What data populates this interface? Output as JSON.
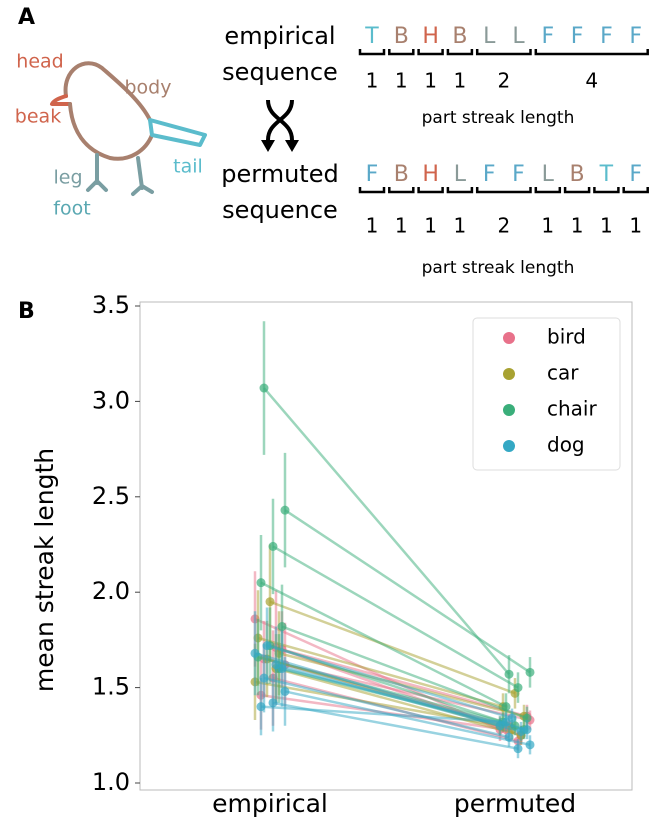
{
  "panel_a": {
    "label": "A",
    "bird_parts": [
      {
        "text": "head",
        "color": "#d0644c"
      },
      {
        "text": "body",
        "color": "#a8806e"
      },
      {
        "text": "beak",
        "color": "#d0644c"
      },
      {
        "text": "tail",
        "color": "#5bbccc"
      },
      {
        "text": "leg",
        "color": "#7a9ea2"
      },
      {
        "text": "foot",
        "color": "#5aa8b2"
      }
    ],
    "letter_colors": {
      "T": "#5bbccc",
      "B": "#a8806e",
      "H": "#d0644c",
      "L": "#8a9a98",
      "F": "#5aa8c8"
    },
    "empirical": {
      "label_lines": [
        "empirical",
        "sequence"
      ],
      "letters": [
        "T",
        "B",
        "H",
        "B",
        "L",
        "L",
        "F",
        "F",
        "F",
        "F"
      ],
      "streaks": [
        1,
        1,
        1,
        1,
        2,
        4
      ],
      "caption": "part streak length"
    },
    "permuted": {
      "label_lines": [
        "permuted",
        "sequence"
      ],
      "letters": [
        "F",
        "B",
        "H",
        "L",
        "F",
        "F",
        "L",
        "B",
        "T",
        "F"
      ],
      "streaks": [
        1,
        1,
        1,
        1,
        2,
        1,
        1,
        1,
        1
      ],
      "caption": "part streak length"
    }
  },
  "chart_data": {
    "type": "slope",
    "panel_label": "B",
    "y_label": "mean streak length",
    "categories": [
      "empirical",
      "permuted"
    ],
    "ylim": [
      1.0,
      3.5
    ],
    "yticks": [
      {
        "value": 1.0,
        "label": "1.0"
      },
      1.5,
      {
        "value": 2.0,
        "label": "2.0"
      },
      2.5,
      {
        "value": 3.0,
        "label": "3.0"
      },
      3.5
    ],
    "legend": "upper right",
    "series": [
      {
        "name": "bird",
        "color": "#e8718a",
        "lines": [
          {
            "values": [
              1.86,
              1.28
            ],
            "errors": [
              0.25,
              0.06
            ]
          },
          {
            "values": [
              1.71,
              1.25
            ],
            "errors": [
              0.3,
              0.05
            ]
          },
          {
            "values": [
              1.65,
              1.3
            ],
            "errors": [
              0.2,
              0.06
            ]
          },
          {
            "values": [
              1.62,
              1.33
            ],
            "errors": [
              0.22,
              0.05
            ]
          },
          {
            "values": [
              1.55,
              1.22
            ],
            "errors": [
              0.25,
              0.05
            ]
          },
          {
            "values": [
              1.46,
              1.28
            ],
            "errors": [
              0.18,
              0.05
            ]
          },
          {
            "values": [
              1.7,
              1.35
            ],
            "errors": [
              0.2,
              0.06
            ]
          }
        ]
      },
      {
        "name": "car",
        "color": "#a8a232",
        "lines": [
          {
            "values": [
              1.95,
              1.47
            ],
            "errors": [
              0.3,
              0.08
            ]
          },
          {
            "values": [
              1.76,
              1.4
            ],
            "errors": [
              0.25,
              0.07
            ]
          },
          {
            "values": [
              1.68,
              1.35
            ],
            "errors": [
              0.22,
              0.06
            ]
          },
          {
            "values": [
              1.65,
              1.28
            ],
            "errors": [
              0.2,
              0.05
            ]
          },
          {
            "values": [
              1.53,
              1.3
            ],
            "errors": [
              0.2,
              0.05
            ]
          },
          {
            "values": [
              1.6,
              1.25
            ],
            "errors": [
              0.18,
              0.05
            ]
          }
        ]
      },
      {
        "name": "chair",
        "color": "#3aae7a",
        "lines": [
          {
            "values": [
              3.07,
              1.57
            ],
            "errors": [
              0.35,
              0.1
            ]
          },
          {
            "values": [
              2.43,
              1.58
            ],
            "errors": [
              0.3,
              0.08
            ]
          },
          {
            "values": [
              2.24,
              1.5
            ],
            "errors": [
              0.25,
              0.08
            ]
          },
          {
            "values": [
              2.05,
              1.4
            ],
            "errors": [
              0.25,
              0.07
            ]
          },
          {
            "values": [
              1.82,
              1.34
            ],
            "errors": [
              0.22,
              0.06
            ]
          },
          {
            "values": [
              1.72,
              1.3
            ],
            "errors": [
              0.2,
              0.05
            ]
          },
          {
            "values": [
              1.66,
              1.32
            ],
            "errors": [
              0.2,
              0.05
            ]
          },
          {
            "values": [
              1.6,
              1.28
            ],
            "errors": [
              0.18,
              0.05
            ]
          }
        ]
      },
      {
        "name": "dog",
        "color": "#34a8c4",
        "lines": [
          {
            "values": [
              1.72,
              1.34
            ],
            "errors": [
              0.2,
              0.05
            ]
          },
          {
            "values": [
              1.68,
              1.3
            ],
            "errors": [
              0.22,
              0.05
            ]
          },
          {
            "values": [
              1.62,
              1.27
            ],
            "errors": [
              0.2,
              0.05
            ]
          },
          {
            "values": [
              1.55,
              1.24
            ],
            "errors": [
              0.18,
              0.05
            ]
          },
          {
            "values": [
              1.48,
              1.2
            ],
            "errors": [
              0.18,
              0.05
            ]
          },
          {
            "values": [
              1.42,
              1.18
            ],
            "errors": [
              0.15,
              0.05
            ]
          },
          {
            "values": [
              1.4,
              1.32
            ],
            "errors": [
              0.15,
              0.05
            ]
          },
          {
            "values": [
              1.6,
              1.28
            ],
            "errors": [
              0.2,
              0.05
            ]
          }
        ]
      }
    ]
  }
}
